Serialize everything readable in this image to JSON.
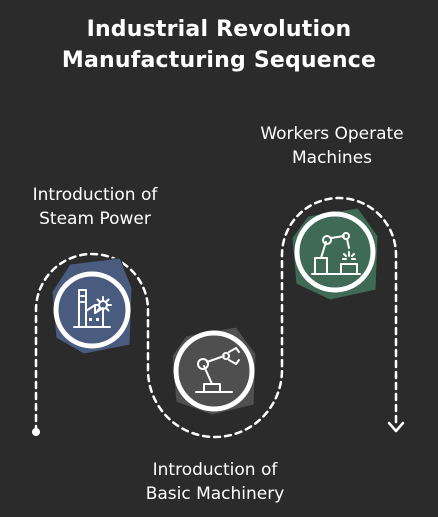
{
  "title": {
    "line1": "Industrial Revolution",
    "line2": "Manufacturing Sequence"
  },
  "steps": [
    {
      "id": "steam",
      "label_line1": "Introduction of",
      "label_line2": "Steam Power",
      "icon": "factory-icon",
      "color": "#4a5b80"
    },
    {
      "id": "machinery",
      "label_line1": "Introduction of",
      "label_line2": "Basic Machinery",
      "icon": "robotic-arm-icon",
      "color": "#4f4f4f"
    },
    {
      "id": "workers",
      "label_line1": "Workers Operate",
      "label_line2": "Machines",
      "icon": "welding-robot-icon",
      "color": "#3f6a55"
    }
  ],
  "colors": {
    "background": "#2b2b2b",
    "path": "#ffffff",
    "text": "#ffffff"
  }
}
